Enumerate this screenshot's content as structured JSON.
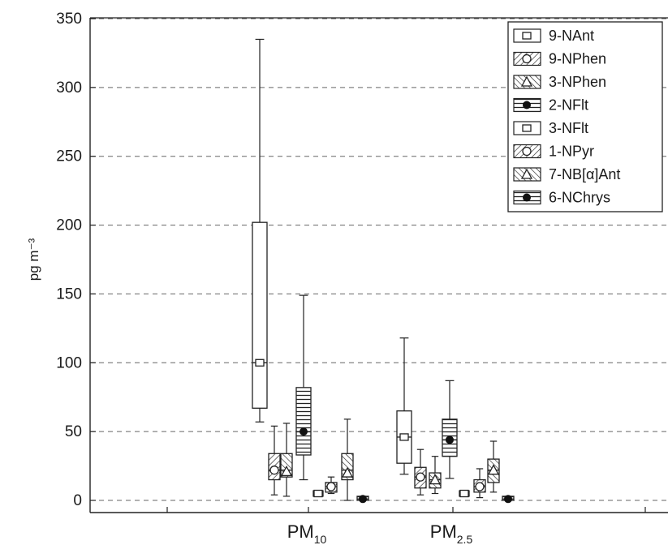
{
  "chart_data": {
    "type": "box",
    "ylabel": "pg m⁻³",
    "ylim": [
      0,
      350
    ],
    "yticks": [
      0,
      50,
      100,
      150,
      200,
      250,
      300,
      350
    ],
    "grid": "horizontal dashed",
    "legend_position": "top-right",
    "categories": [
      {
        "label": "PM",
        "sub": "10"
      },
      {
        "label": "PM",
        "sub": "2.5"
      }
    ],
    "series": [
      {
        "name": "9-NAnt",
        "pattern": "plain",
        "marker": "square"
      },
      {
        "name": "9-NPhen",
        "pattern": "diag-fwd",
        "marker": "circle-open"
      },
      {
        "name": "3-NPhen",
        "pattern": "diag-back",
        "marker": "triangle-open"
      },
      {
        "name": "2-NFlt",
        "pattern": "horizontal",
        "marker": "circle-filled"
      },
      {
        "name": "3-NFlt",
        "pattern": "plain",
        "marker": "square"
      },
      {
        "name": "1-NPyr",
        "pattern": "diag-fwd",
        "marker": "circle-open"
      },
      {
        "name": "7-NB[α]Ant",
        "pattern": "diag-back",
        "marker": "triangle-open"
      },
      {
        "name": "6-NChrys",
        "pattern": "horizontal",
        "marker": "circle-filled"
      }
    ],
    "boxes": {
      "PM10": [
        {
          "whislo": 57,
          "q1": 67,
          "med": 100,
          "q3": 202,
          "whishi": 335,
          "mean": 100
        },
        {
          "whislo": 4,
          "q1": 15,
          "med": 22,
          "q3": 34,
          "whishi": 54,
          "mean": 22
        },
        {
          "whislo": 3,
          "q1": 17,
          "med": 22,
          "q3": 34,
          "whishi": 56,
          "mean": 21
        },
        {
          "whislo": 15,
          "q1": 33,
          "med": 50,
          "q3": 82,
          "whishi": 149,
          "mean": 50
        },
        {
          "whislo": 3,
          "q1": 3,
          "med": 5,
          "q3": 7,
          "whishi": 7,
          "mean": 5
        },
        {
          "whislo": 5,
          "q1": 6,
          "med": 10,
          "q3": 13,
          "whishi": 17,
          "mean": 10
        },
        {
          "whislo": 0,
          "q1": 15,
          "med": 22,
          "q3": 34,
          "whishi": 59,
          "mean": 20
        },
        {
          "whislo": 0,
          "q1": 0,
          "med": 1,
          "q3": 3,
          "whishi": 3,
          "mean": 1
        }
      ],
      "PM2.5": [
        {
          "whislo": 19,
          "q1": 27,
          "med": 46,
          "q3": 65,
          "whishi": 118,
          "mean": 46
        },
        {
          "whislo": 4,
          "q1": 9,
          "med": 17,
          "q3": 24,
          "whishi": 37,
          "mean": 17
        },
        {
          "whislo": 5,
          "q1": 9,
          "med": 15,
          "q3": 20,
          "whishi": 32,
          "mean": 15
        },
        {
          "whislo": 16,
          "q1": 32,
          "med": 44,
          "q3": 59,
          "whishi": 87,
          "mean": 44
        },
        {
          "whislo": 3,
          "q1": 3,
          "med": 5,
          "q3": 7,
          "whishi": 7,
          "mean": 5
        },
        {
          "whislo": 2,
          "q1": 6,
          "med": 10,
          "q3": 15,
          "whishi": 23,
          "mean": 10
        },
        {
          "whislo": 6,
          "q1": 13,
          "med": 22,
          "q3": 30,
          "whishi": 43,
          "mean": 22
        },
        {
          "whislo": 0,
          "q1": 0,
          "med": 1,
          "q3": 3,
          "whishi": 3,
          "mean": 1
        }
      ]
    }
  }
}
